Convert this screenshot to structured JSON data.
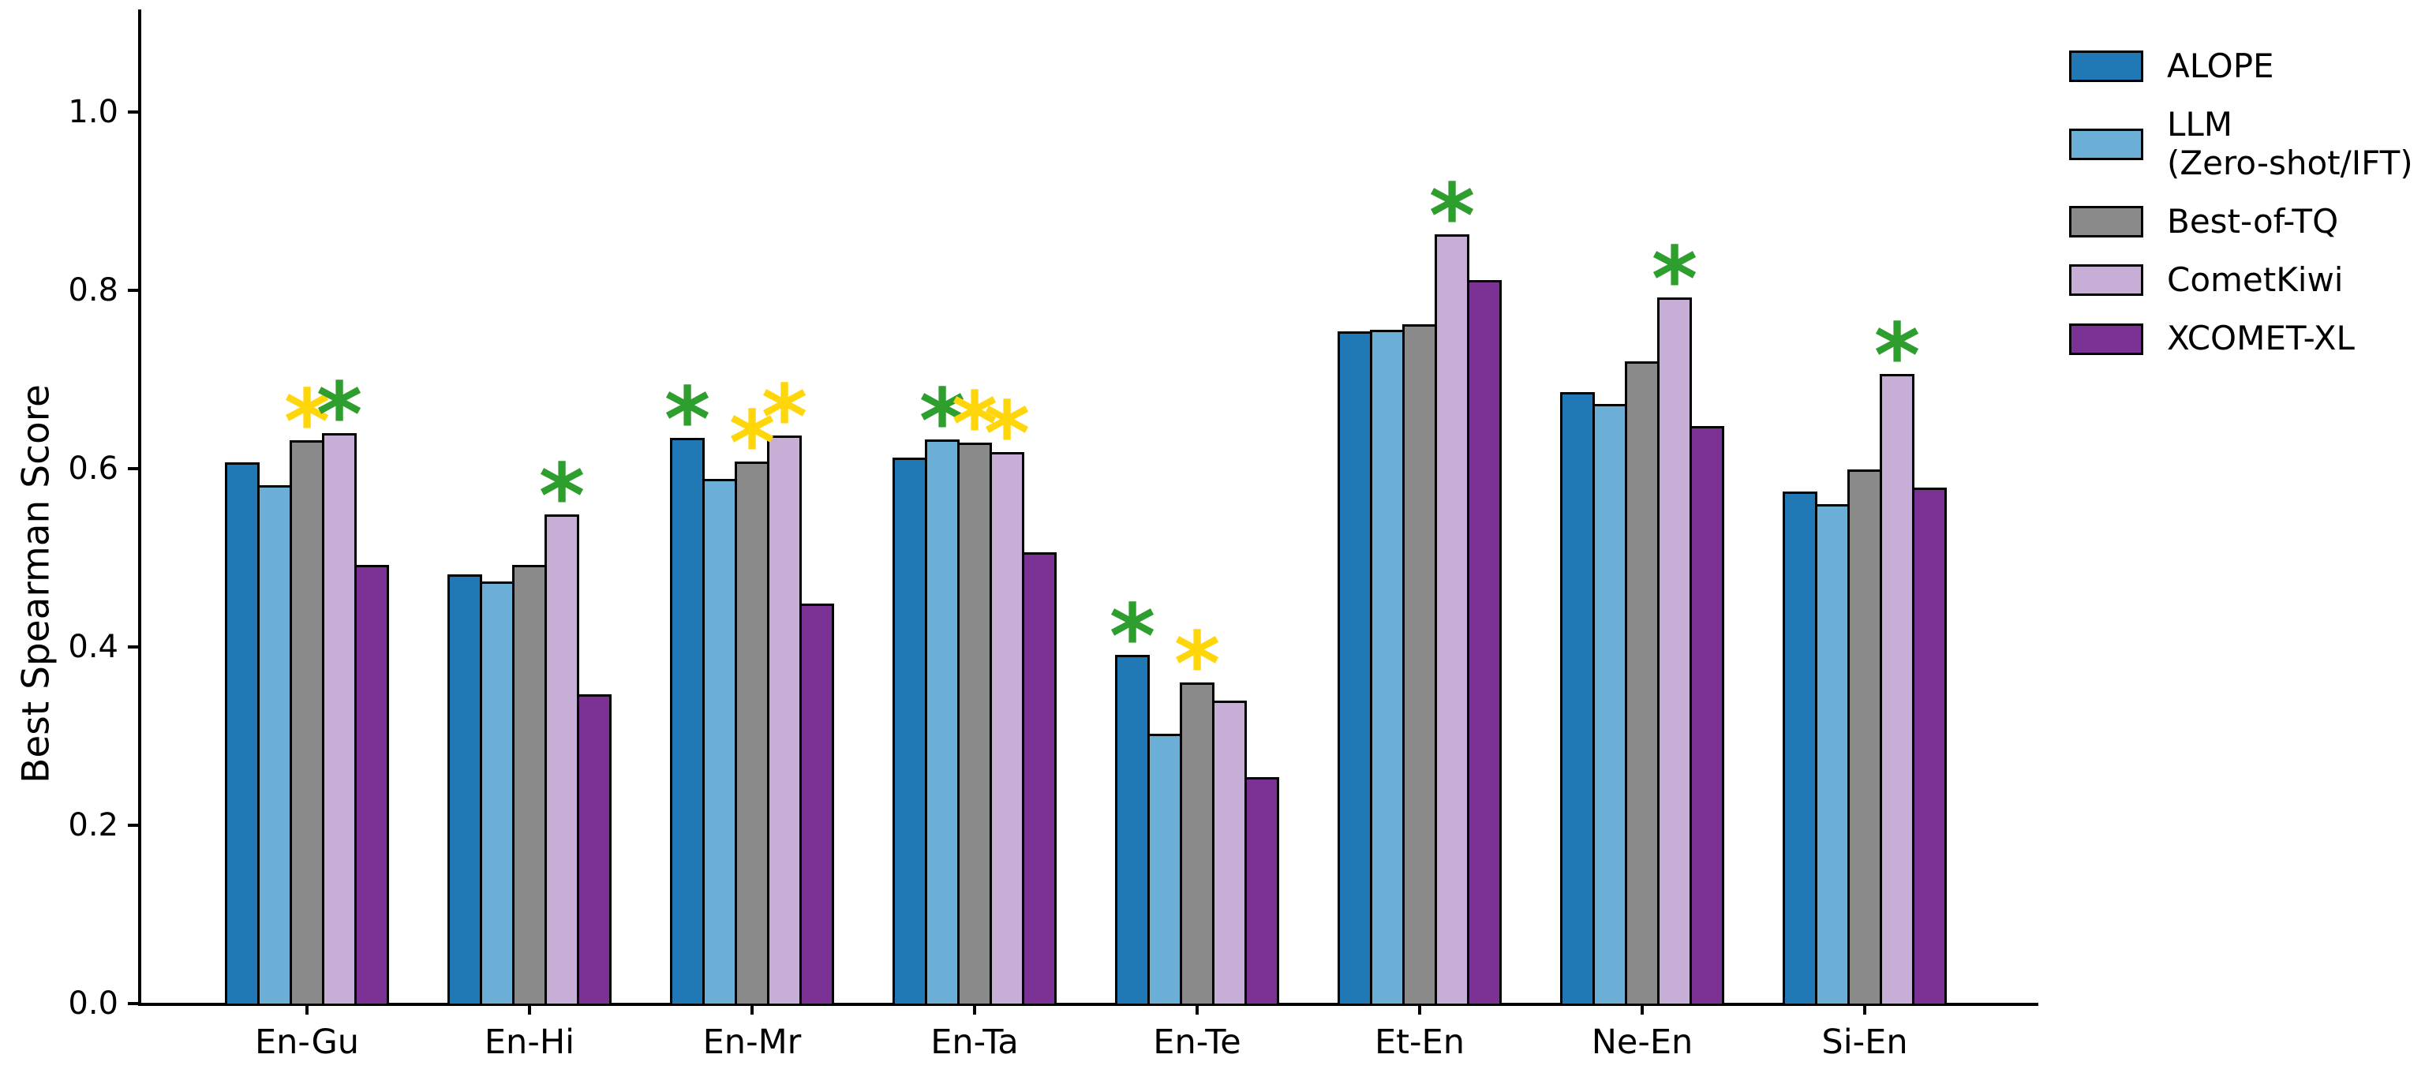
{
  "chart_data": {
    "type": "bar",
    "title": "",
    "xlabel": "",
    "ylabel": "Best Spearman Score",
    "ylim": [
      0,
      1.1
    ],
    "yticks": [
      0.0,
      0.2,
      0.4,
      0.6,
      0.8,
      1.0
    ],
    "ytick_labels": [
      "0.0",
      "0.2",
      "0.4",
      "0.6",
      "0.8",
      "1.0"
    ],
    "grid": false,
    "legend_position": "outside-upper-right",
    "bar_edge_color": "#000000",
    "categories": [
      "En-Gu",
      "En-Hi",
      "En-Mr",
      "En-Ta",
      "En-Te",
      "Et-En",
      "Ne-En",
      "Si-En"
    ],
    "series": [
      {
        "name": "ALOPE",
        "legend_label": "ALOPE",
        "color": "#2079B5",
        "values": [
          0.605,
          0.48,
          0.633,
          0.611,
          0.389,
          0.752,
          0.684,
          0.573
        ]
      },
      {
        "name": "LLM (Zero-shot/IFT)",
        "legend_label": "LLM\n(Zero-shot/IFT)",
        "color": "#6BAED6",
        "values": [
          0.58,
          0.472,
          0.587,
          0.631,
          0.301,
          0.754,
          0.671,
          0.558
        ]
      },
      {
        "name": "Best-of-TQ",
        "legend_label": "Best-of-TQ",
        "color": "#8A8A8A",
        "values": [
          0.63,
          0.49,
          0.606,
          0.627,
          0.358,
          0.76,
          0.719,
          0.597
        ]
      },
      {
        "name": "CometKiwi",
        "legend_label": "CometKiwi",
        "color": "#C6AED6",
        "values": [
          0.638,
          0.547,
          0.635,
          0.617,
          0.338,
          0.861,
          0.79,
          0.704
        ]
      },
      {
        "name": "XCOMET-XL",
        "legend_label": "XCOMET-XL",
        "color": "#7B3294",
        "values": [
          0.49,
          0.345,
          0.447,
          0.504,
          0.252,
          0.81,
          0.646,
          0.577
        ]
      }
    ],
    "significance_markers": {
      "symbol": "*",
      "colors": {
        "green": "#2E9E2E",
        "yellow": "#FFD60A"
      },
      "items": [
        {
          "category": "En-Gu",
          "series": "Best-of-TQ",
          "color": "yellow"
        },
        {
          "category": "En-Gu",
          "series": "CometKiwi",
          "color": "green"
        },
        {
          "category": "En-Hi",
          "series": "CometKiwi",
          "color": "green"
        },
        {
          "category": "En-Mr",
          "series": "ALOPE",
          "color": "green"
        },
        {
          "category": "En-Mr",
          "series": "Best-of-TQ",
          "color": "yellow"
        },
        {
          "category": "En-Mr",
          "series": "CometKiwi",
          "color": "yellow"
        },
        {
          "category": "En-Ta",
          "series": "LLM (Zero-shot/IFT)",
          "color": "green"
        },
        {
          "category": "En-Ta",
          "series": "Best-of-TQ",
          "color": "yellow"
        },
        {
          "category": "En-Ta",
          "series": "CometKiwi",
          "color": "yellow"
        },
        {
          "category": "En-Te",
          "series": "ALOPE",
          "color": "green"
        },
        {
          "category": "En-Te",
          "series": "Best-of-TQ",
          "color": "yellow"
        },
        {
          "category": "Et-En",
          "series": "CometKiwi",
          "color": "green"
        },
        {
          "category": "Ne-En",
          "series": "CometKiwi",
          "color": "green"
        },
        {
          "category": "Si-En",
          "series": "CometKiwi",
          "color": "green"
        }
      ]
    }
  }
}
